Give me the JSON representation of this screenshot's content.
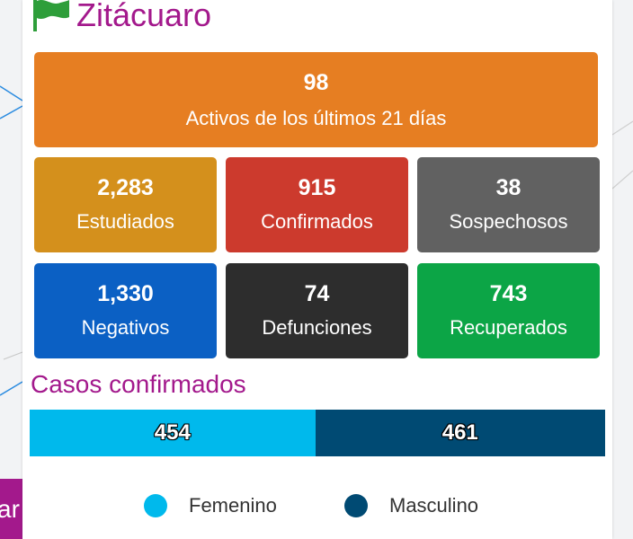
{
  "header": {
    "title": "Zitácuaro",
    "icon": "flag-icon",
    "flag_color": "#2e9e3a"
  },
  "left_tab": {
    "label": "ar",
    "color": "#a3198c"
  },
  "active": {
    "value": "98",
    "label": "Activos de los últimos 21 días",
    "color": "#e67e22"
  },
  "stats": [
    {
      "value": "2,283",
      "label": "Estudiados",
      "color": "#d4901c"
    },
    {
      "value": "915",
      "label": "Confirmados",
      "color": "#cc3a2d"
    },
    {
      "value": "38",
      "label": "Sospechosos",
      "color": "#616161"
    },
    {
      "value": "1,330",
      "label": "Negativos",
      "color": "#0b60c4"
    },
    {
      "value": "74",
      "label": "Defunciones",
      "color": "#2d2d2d"
    },
    {
      "value": "743",
      "label": "Recuperados",
      "color": "#0ca546"
    }
  ],
  "confirmed_by_sex": {
    "title": "Casos confirmados",
    "segments": [
      {
        "name": "Femenino",
        "value": 454,
        "label": "454",
        "color": "#00b9ec"
      },
      {
        "name": "Masculino",
        "value": 461,
        "label": "461",
        "color": "#004a73"
      }
    ]
  },
  "legend": [
    {
      "label": "Femenino",
      "color": "#00b9ec"
    },
    {
      "label": "Masculino",
      "color": "#004a73"
    }
  ]
}
